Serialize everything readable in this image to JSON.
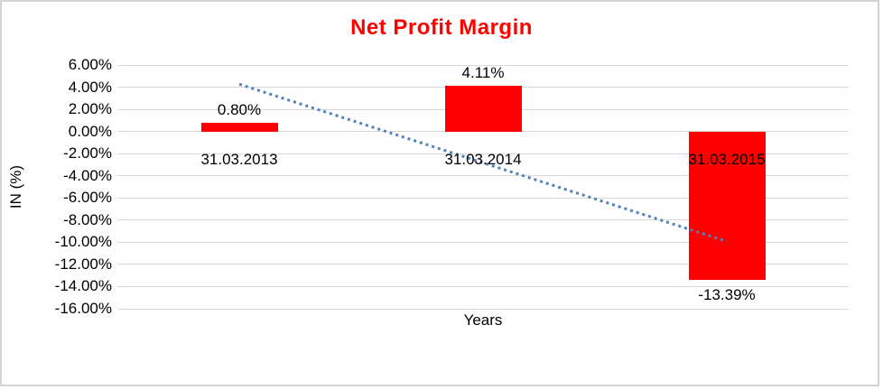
{
  "chart_data": {
    "type": "bar",
    "title": "Net Profit Margin",
    "xlabel": "Years",
    "ylabel": "IN (%)",
    "categories": [
      "31.03.2013",
      "31.03.2014",
      "31.03.2015"
    ],
    "values": [
      0.8,
      4.11,
      -13.39
    ],
    "data_labels": [
      "0.80%",
      "4.11%",
      "-13.39%"
    ],
    "ylim": [
      -16,
      6
    ],
    "ytick_step": 2,
    "ytick_labels": [
      "6.00%",
      "4.00%",
      "2.00%",
      "0.00%",
      "-2.00%",
      "-4.00%",
      "-6.00%",
      "-8.00%",
      "-10.00%",
      "-12.00%",
      "-14.00%",
      "-16.00%"
    ],
    "grid": true,
    "legend": "none",
    "trendline": {
      "type": "linear",
      "style": "dotted",
      "start": {
        "category_index": 0,
        "value": 4.27
      },
      "end": {
        "category_index": 2,
        "value": -9.92
      }
    },
    "colors": {
      "bar": "#ff0000",
      "title": "#ff0000",
      "trendline": "#4f81bd",
      "gridline": "#d9d9d9",
      "text": "#000000"
    }
  }
}
